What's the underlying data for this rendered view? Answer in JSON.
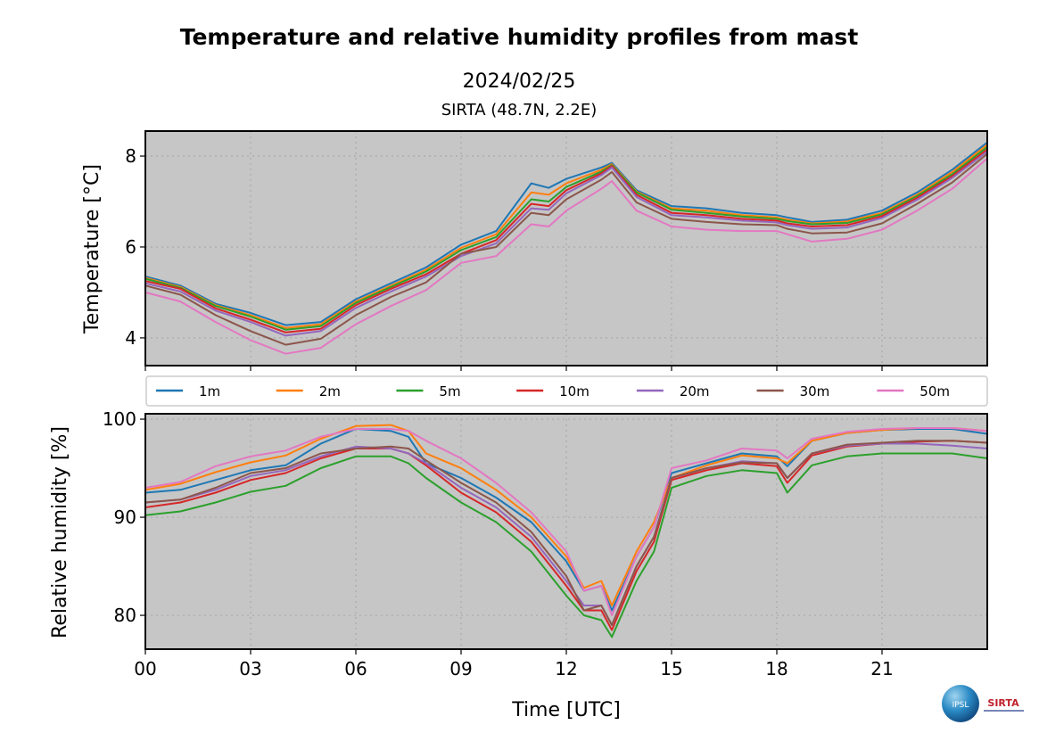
{
  "title": "Temperature and relative humidity profiles from mast",
  "date": "2024/02/25",
  "site": "SIRTA (48.7N, 2.2E)",
  "logo": {
    "left": "IPSL",
    "right": "SIRTA"
  },
  "chart_data": [
    {
      "type": "line",
      "ylabel": "Temperature [°C]",
      "xlabel": "",
      "xlim": [
        0,
        24
      ],
      "ylim": [
        3.39,
        8.55
      ],
      "yticks": [
        4,
        6,
        8
      ],
      "ytick_labels": [
        "4",
        "6",
        "8"
      ],
      "grid": true,
      "x": [
        0,
        1,
        2,
        3,
        4,
        5,
        6,
        7,
        8,
        9,
        10,
        11,
        11.5,
        12,
        13,
        13.3,
        14,
        15,
        16,
        17,
        18,
        18.3,
        19,
        20,
        21,
        22,
        23,
        24
      ],
      "series": [
        {
          "name": "1m",
          "color": "#1f77b4",
          "values": [
            5.35,
            5.15,
            4.75,
            4.55,
            4.28,
            4.35,
            4.85,
            5.2,
            5.55,
            6.05,
            6.35,
            7.4,
            7.3,
            7.5,
            7.75,
            7.85,
            7.25,
            6.9,
            6.85,
            6.75,
            6.7,
            6.65,
            6.55,
            6.6,
            6.8,
            7.2,
            7.7,
            8.3
          ]
        },
        {
          "name": "2m",
          "color": "#ff7f0e",
          "values": [
            5.32,
            5.12,
            4.72,
            4.5,
            4.22,
            4.3,
            4.8,
            5.15,
            5.5,
            5.98,
            6.28,
            7.2,
            7.15,
            7.4,
            7.7,
            7.82,
            7.22,
            6.85,
            6.8,
            6.7,
            6.65,
            6.6,
            6.52,
            6.56,
            6.75,
            7.15,
            7.65,
            8.25
          ]
        },
        {
          "name": "5m",
          "color": "#2ca02c",
          "values": [
            5.3,
            5.1,
            4.7,
            4.47,
            4.18,
            4.26,
            4.77,
            5.12,
            5.46,
            5.93,
            6.22,
            7.05,
            7.0,
            7.32,
            7.66,
            7.8,
            7.2,
            6.82,
            6.75,
            6.67,
            6.62,
            6.57,
            6.5,
            6.53,
            6.72,
            7.12,
            7.6,
            8.2
          ]
        },
        {
          "name": "10m",
          "color": "#d62728",
          "values": [
            5.25,
            5.08,
            4.65,
            4.4,
            4.12,
            4.2,
            4.72,
            5.08,
            5.4,
            5.85,
            6.15,
            6.95,
            6.9,
            7.25,
            7.62,
            7.78,
            7.15,
            6.75,
            6.7,
            6.62,
            6.58,
            6.52,
            6.45,
            6.48,
            6.68,
            7.08,
            7.56,
            8.15
          ]
        },
        {
          "name": "20m",
          "color": "#9467bd",
          "values": [
            5.2,
            5.02,
            4.6,
            4.35,
            4.05,
            4.15,
            4.66,
            5.02,
            5.35,
            5.8,
            6.08,
            6.85,
            6.82,
            7.18,
            7.58,
            7.75,
            7.1,
            6.7,
            6.65,
            6.58,
            6.54,
            6.48,
            6.4,
            6.43,
            6.64,
            7.04,
            7.52,
            8.1
          ]
        },
        {
          "name": "30m",
          "color": "#8c564b",
          "values": [
            5.15,
            4.95,
            4.5,
            4.15,
            3.85,
            3.98,
            4.5,
            4.9,
            5.22,
            5.85,
            6.0,
            6.75,
            6.7,
            7.05,
            7.48,
            7.65,
            6.98,
            6.62,
            6.55,
            6.5,
            6.48,
            6.4,
            6.3,
            6.32,
            6.52,
            6.95,
            7.42,
            8.05
          ]
        },
        {
          "name": "50m",
          "color": "#e377c2",
          "values": [
            5.0,
            4.8,
            4.35,
            3.95,
            3.65,
            3.78,
            4.3,
            4.7,
            5.05,
            5.65,
            5.8,
            6.5,
            6.45,
            6.8,
            7.28,
            7.45,
            6.8,
            6.45,
            6.38,
            6.35,
            6.35,
            6.28,
            6.12,
            6.18,
            6.38,
            6.8,
            7.28,
            7.95
          ]
        }
      ]
    },
    {
      "type": "line",
      "ylabel": "Relative humidity [%]",
      "xlabel": "Time [UTC]",
      "xlim": [
        0,
        24
      ],
      "ylim": [
        76.55,
        100.55
      ],
      "yticks": [
        80,
        90,
        100
      ],
      "ytick_labels": [
        "80",
        "90",
        "100"
      ],
      "xticks": [
        0,
        3,
        6,
        9,
        12,
        15,
        18,
        21
      ],
      "xtick_labels": [
        "00",
        "03",
        "06",
        "09",
        "12",
        "15",
        "18",
        "21"
      ],
      "grid": true,
      "legend": {
        "placement": "top",
        "ncol": 7
      },
      "x": [
        0,
        1,
        2,
        3,
        4,
        5,
        6,
        7,
        7.5,
        8,
        9,
        10,
        11,
        12,
        12.5,
        13,
        13.3,
        14,
        14.5,
        15,
        16,
        17,
        18,
        18.3,
        19,
        20,
        21,
        22,
        23,
        24
      ],
      "series": [
        {
          "name": "1m",
          "color": "#1f77b4",
          "values": [
            92.5,
            92.8,
            93.8,
            94.8,
            95.3,
            97.5,
            99.0,
            98.8,
            98.2,
            95.5,
            94.0,
            92.0,
            89.5,
            85.5,
            82.5,
            83.0,
            80.5,
            86,
            89,
            94.5,
            95.5,
            96.5,
            96.2,
            95.2,
            97.8,
            98.6,
            98.9,
            99.0,
            99.0,
            98.5
          ]
        },
        {
          "name": "2m",
          "color": "#ff7f0e",
          "values": [
            92.8,
            93.4,
            94.6,
            95.6,
            96.3,
            98.0,
            99.3,
            99.4,
            98.8,
            96.5,
            95.0,
            92.8,
            90.0,
            86,
            82.8,
            83.5,
            81.0,
            86.5,
            89.5,
            94.0,
            95.3,
            96.3,
            96.0,
            95.5,
            97.8,
            98.6,
            98.9,
            99.1,
            99.1,
            98.8
          ]
        },
        {
          "name": "5m",
          "color": "#2ca02c",
          "values": [
            90.2,
            90.6,
            91.5,
            92.6,
            93.2,
            95.0,
            96.2,
            96.2,
            95.5,
            94.0,
            91.5,
            89.5,
            86.5,
            82,
            80.0,
            79.5,
            77.8,
            83.5,
            86.5,
            93.0,
            94.2,
            94.8,
            94.5,
            92.5,
            95.3,
            96.2,
            96.5,
            96.5,
            96.5,
            96.0
          ]
        },
        {
          "name": "10m",
          "color": "#d62728",
          "values": [
            91.0,
            91.5,
            92.5,
            93.8,
            94.5,
            96.0,
            97.0,
            97.0,
            96.5,
            95.3,
            92.5,
            90.5,
            87.5,
            83,
            80.5,
            80.5,
            78.5,
            84.5,
            87.5,
            93.8,
            94.8,
            95.5,
            95.2,
            93.5,
            96.3,
            97.2,
            97.5,
            97.7,
            97.8,
            97.6
          ]
        },
        {
          "name": "20m",
          "color": "#9467bd",
          "values": [
            91.5,
            91.8,
            92.8,
            94.2,
            94.8,
            96.2,
            97.2,
            97.0,
            96.5,
            95.5,
            93.0,
            91.0,
            88,
            83.5,
            81,
            81,
            79,
            85,
            88,
            94,
            95,
            95.7,
            95.5,
            94,
            96.5,
            97.3,
            97.5,
            97.5,
            97.3,
            97.0
          ]
        },
        {
          "name": "30m",
          "color": "#8c564b",
          "values": [
            91.5,
            91.8,
            93.0,
            94.5,
            95.0,
            96.5,
            97.0,
            97.2,
            97.0,
            95.8,
            93.5,
            91.5,
            88.5,
            84,
            80.5,
            81,
            79,
            85,
            88,
            94,
            95,
            95.6,
            95.5,
            94,
            96.5,
            97.4,
            97.6,
            97.8,
            97.8,
            97.6
          ]
        },
        {
          "name": "50m",
          "color": "#e377c2",
          "values": [
            93.0,
            93.6,
            95.2,
            96.2,
            96.8,
            98.2,
            99.0,
            99.0,
            98.8,
            97.8,
            96.0,
            93.5,
            90.5,
            86.5,
            82.5,
            83,
            80,
            86,
            89,
            95,
            95.8,
            97.0,
            96.8,
            96,
            98.0,
            98.7,
            99.0,
            99.1,
            99.1,
            98.8
          ]
        }
      ]
    }
  ]
}
